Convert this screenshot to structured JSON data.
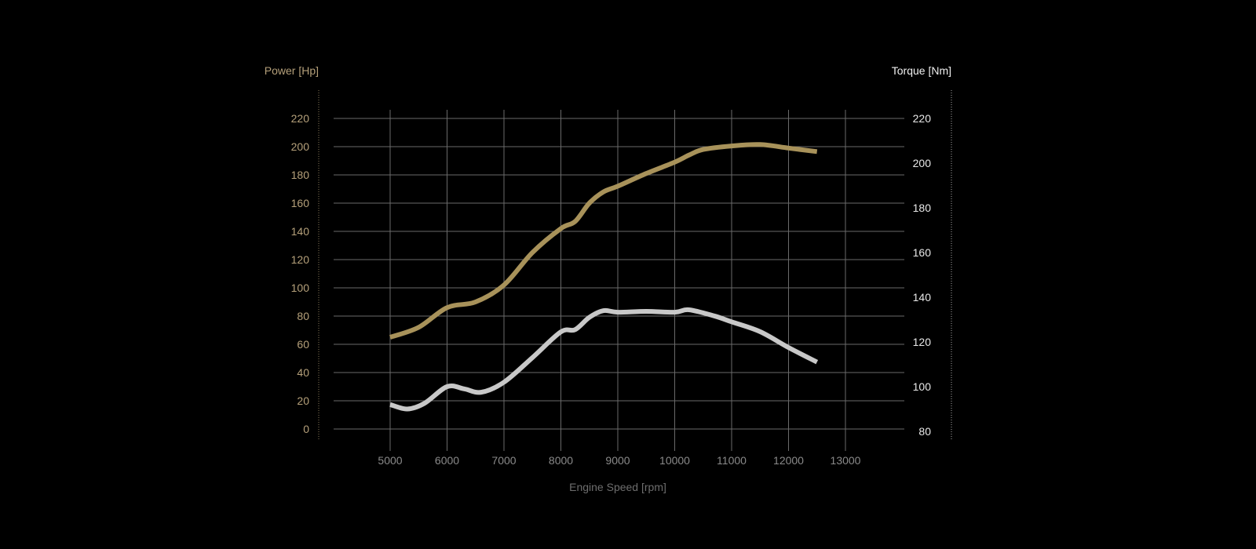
{
  "chart_data": {
    "type": "line",
    "xlabel": "Engine Speed [rpm]",
    "ylabel_left": "Power [Hp]",
    "ylabel_right": "Torque [Nm]",
    "xlim": [
      4000,
      14000
    ],
    "xticks": [
      5000,
      6000,
      7000,
      8000,
      9000,
      10000,
      11000,
      12000,
      13000
    ],
    "ylim_left": [
      0,
      220
    ],
    "yticks_left": [
      0,
      20,
      40,
      60,
      80,
      100,
      120,
      140,
      160,
      180,
      200,
      220
    ],
    "ylim_right": [
      80,
      220
    ],
    "yticks_right": [
      80,
      100,
      120,
      140,
      160,
      180,
      200,
      220
    ],
    "grid": true,
    "series": [
      {
        "name": "Power",
        "axis": "left",
        "color": "#a8925a",
        "x": [
          5000,
          5500,
          6000,
          6500,
          7000,
          7500,
          8000,
          8250,
          8500,
          8750,
          9000,
          9500,
          10000,
          10250,
          10500,
          11000,
          11500,
          12000,
          12500
        ],
        "y": [
          65,
          72,
          86,
          90,
          102,
          125,
          142,
          147,
          160,
          168,
          172,
          181,
          189,
          194,
          198,
          200.5,
          201.5,
          199,
          196.5
        ]
      },
      {
        "name": "Torque",
        "axis": "right",
        "color": "#c8c8c8",
        "x": [
          5000,
          5300,
          5600,
          6000,
          6300,
          6600,
          7000,
          7500,
          8000,
          8250,
          8500,
          8750,
          9000,
          9500,
          10000,
          10250,
          10700,
          11000,
          11500,
          12000,
          12500
        ],
        "y": [
          92,
          90,
          92.5,
          100,
          99,
          97.5,
          102,
          113,
          124.5,
          125.5,
          131,
          134,
          133.3,
          133.7,
          133.3,
          134.4,
          131.6,
          129,
          124.6,
          117.5,
          111
        ]
      }
    ]
  }
}
